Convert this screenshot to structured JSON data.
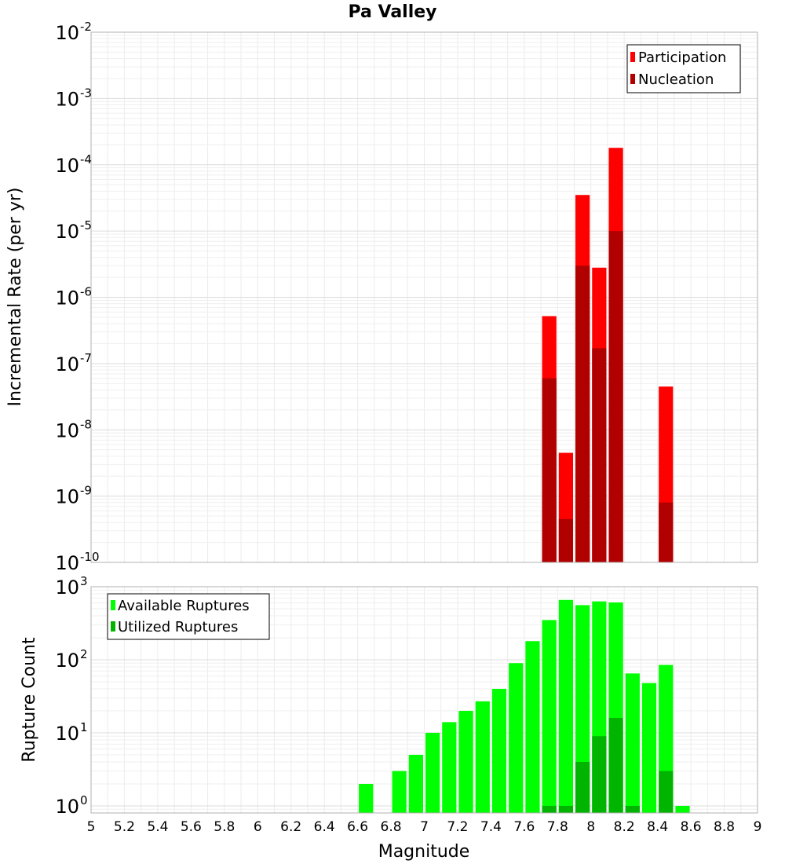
{
  "chart_data": [
    {
      "type": "bar",
      "title": "Pa Valley",
      "xlabel": "Magnitude",
      "ylabel": "Incremental Rate (per yr)",
      "yscale": "log",
      "ylim": [
        1e-10,
        0.01
      ],
      "xlim": [
        5,
        9
      ],
      "grid": true,
      "legend": "top-right",
      "y_tick_bases": [
        "10",
        "10",
        "10",
        "10",
        "10",
        "10",
        "10",
        "10",
        "10"
      ],
      "y_tick_exponents": [
        "-10",
        "-9",
        "-8",
        "-7",
        "-6",
        "-5",
        "-4",
        "-3",
        "-2"
      ],
      "x": [
        7.75,
        7.85,
        7.95,
        8.05,
        8.15,
        8.45
      ],
      "series": [
        {
          "name": "Participation",
          "color": "#ff0000",
          "values": [
            5.2e-07,
            4.5e-09,
            3.5e-05,
            2.8e-06,
            0.00018,
            4.5e-08
          ]
        },
        {
          "name": "Nucleation",
          "color": "#b00000",
          "values": [
            6e-08,
            4.5e-10,
            3e-06,
            1.7e-07,
            1e-05,
            8e-10
          ]
        }
      ]
    },
    {
      "type": "bar",
      "xlabel": "Magnitude",
      "ylabel": "Rupture Count",
      "yscale": "log",
      "ylim": [
        0.8,
        1000
      ],
      "xlim": [
        5,
        9
      ],
      "grid": true,
      "legend": "top-left",
      "y_tick_bases": [
        "10",
        "10",
        "10",
        "10"
      ],
      "y_tick_exponents": [
        "0",
        "1",
        "2",
        "3"
      ],
      "x_ticks": [
        "5",
        "5.2",
        "5.4",
        "5.6",
        "5.8",
        "6",
        "6.2",
        "6.4",
        "6.6",
        "6.8",
        "7",
        "7.2",
        "7.4",
        "7.6",
        "7.8",
        "8",
        "8.2",
        "8.4",
        "8.6",
        "8.8",
        "9"
      ],
      "x": [
        6.65,
        6.85,
        6.95,
        7.05,
        7.15,
        7.25,
        7.35,
        7.45,
        7.55,
        7.65,
        7.75,
        7.85,
        7.95,
        8.05,
        8.15,
        8.25,
        8.35,
        8.45,
        8.55
      ],
      "series": [
        {
          "name": "Available Ruptures",
          "color": "#00ff00",
          "values": [
            2,
            3,
            5,
            10,
            14,
            20,
            27,
            40,
            90,
            180,
            350,
            660,
            560,
            630,
            610,
            65,
            48,
            85,
            1
          ]
        },
        {
          "name": "Utilized Ruptures",
          "color": "#00b400",
          "values": [
            0,
            0,
            0,
            0,
            0,
            0,
            0,
            0,
            0,
            0,
            1,
            1,
            4,
            9,
            16,
            1,
            0,
            3,
            0
          ]
        }
      ]
    }
  ]
}
